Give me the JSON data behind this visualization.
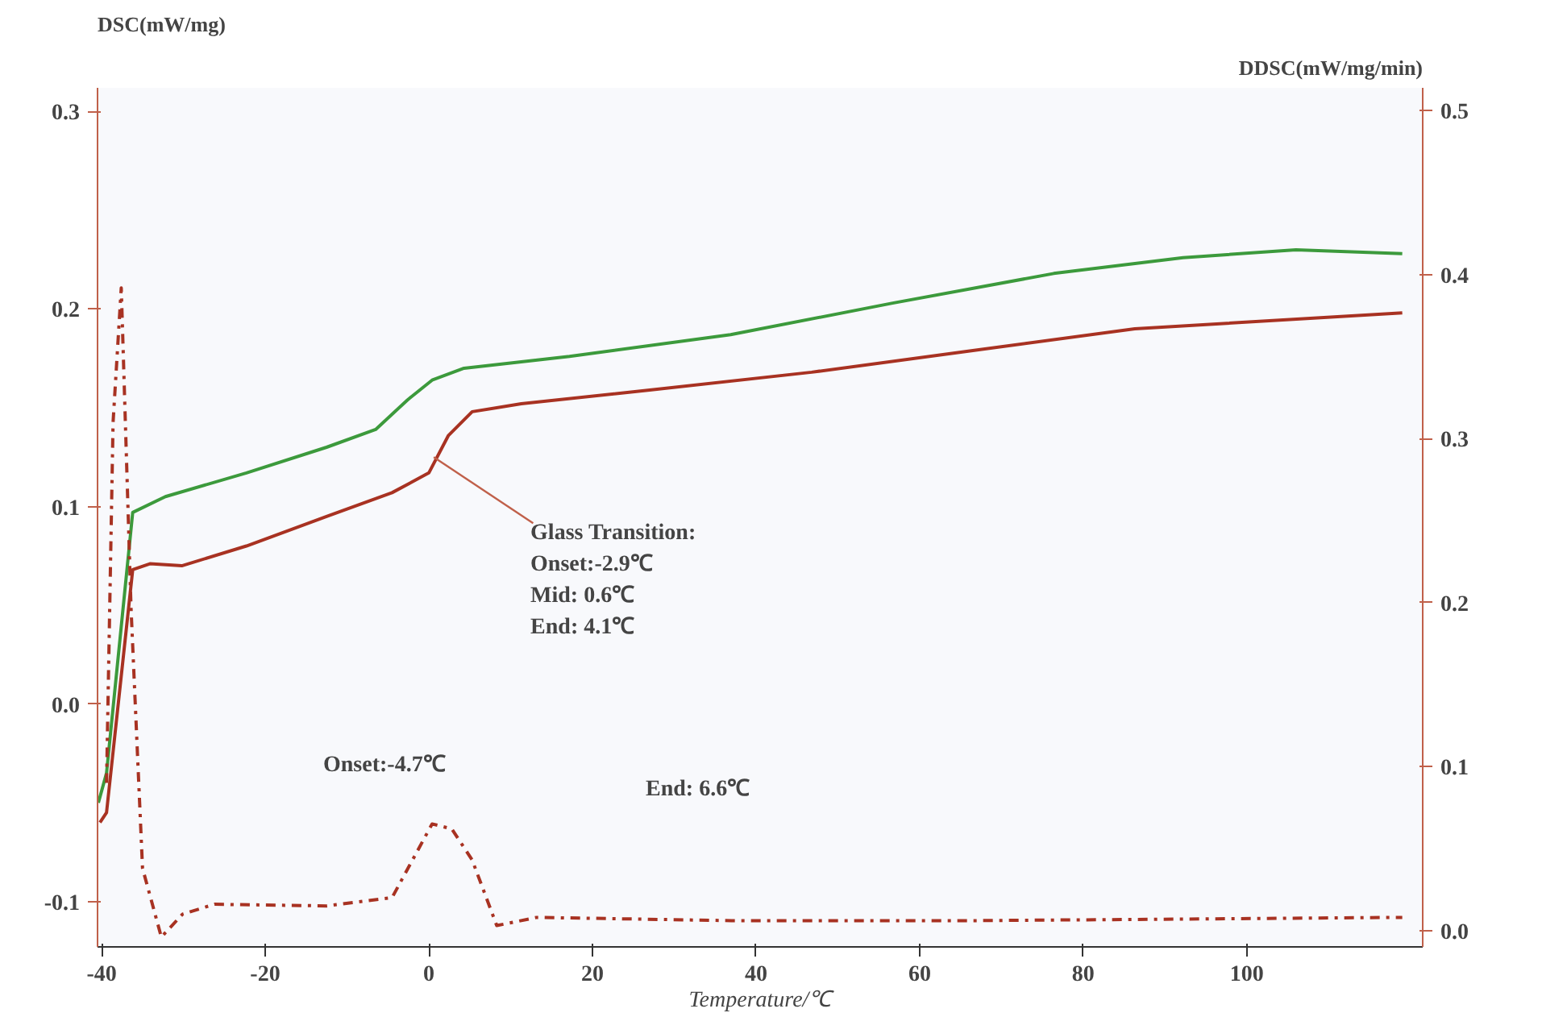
{
  "chart_data": {
    "type": "line",
    "xlabel": "Temperature/℃",
    "ylabel": "DSC(mW/mg)",
    "y2label": "DDSC(mW/mg/min)",
    "xlim": [
      -40.5,
      121.5
    ],
    "xticks": [
      -40,
      -20,
      0,
      20,
      40,
      60,
      80,
      100
    ],
    "ylim": [
      -0.123,
      0.312
    ],
    "yticks": [
      {
        "value": -0.1,
        "label": "-0.1"
      },
      {
        "value": 0,
        "label": "0.0"
      },
      {
        "value": 0.1,
        "label": "0.1"
      },
      {
        "value": 0.2,
        "label": "0.2"
      },
      {
        "value": 0.3,
        "label": "0.3"
      }
    ],
    "y2lim": [
      -0.01,
      0.514
    ],
    "y2ticks": [
      {
        "value": 0,
        "label": "0.0"
      },
      {
        "value": 0.1,
        "label": "0.1"
      },
      {
        "value": 0.2,
        "label": "0.2"
      },
      {
        "value": 0.3,
        "label": "0.3"
      },
      {
        "value": 0.4,
        "label": "0.4"
      },
      {
        "value": 0.5,
        "label": "0.5"
      }
    ],
    "grid": false,
    "series": [
      {
        "color": "#3c9a3c",
        "line_style": "solid",
        "x": [
          -40.4,
          -39.4,
          -36.2,
          -32.2,
          -22.3,
          -12.5,
          -6.5,
          -2.6,
          0.4,
          4.3,
          17.2,
          36.9,
          56.7,
          76.4,
          92.2,
          106,
          119
        ],
        "values": [
          -0.05,
          -0.035,
          0.097,
          0.105,
          0.117,
          0.13,
          0.139,
          0.154,
          0.164,
          0.17,
          0.176,
          0.187,
          0.203,
          0.218,
          0.226,
          0.23,
          0.228
        ]
      },
      {
        "color": "#a83222",
        "line_style": "solid",
        "x": [
          -40.2,
          -39.4,
          -36.2,
          -34.1,
          -30.2,
          -22.3,
          -12.5,
          -4.5,
          0,
          2.4,
          5.3,
          11.3,
          27,
          46.8,
          66.5,
          86.3,
          119
        ],
        "values": [
          -0.06,
          -0.055,
          0.068,
          0.071,
          0.07,
          0.08,
          0.095,
          0.107,
          0.117,
          0.136,
          0.148,
          0.152,
          0.159,
          0.168,
          0.179,
          0.19,
          0.198
        ]
      },
      {
        "color": "#a83222",
        "line_style": "dashdot",
        "axis": "y2",
        "x": [
          -39.4,
          -38.6,
          -37.6,
          -36.4,
          -35,
          -32.7,
          -30.1,
          -26.2,
          -12.5,
          -4.5,
          0.4,
          2.8,
          5.3,
          8.3,
          13.2,
          37,
          66.5,
          119
        ],
        "values": [
          0.09,
          0.31,
          0.392,
          0.196,
          0.038,
          -0.004,
          0.01,
          0.016,
          0.015,
          0.02,
          0.065,
          0.062,
          0.043,
          0.003,
          0.008,
          0.006,
          0.006,
          0.008
        ]
      }
    ],
    "annotations": [
      {
        "text": "Glass Transition:\nOnset:-2.9℃\nMid: 0.6℃\nEnd: 4.1℃",
        "x": 0.6,
        "y": 0.125
      },
      "Onset:-4.7℃",
      "End: 6.6℃"
    ]
  }
}
